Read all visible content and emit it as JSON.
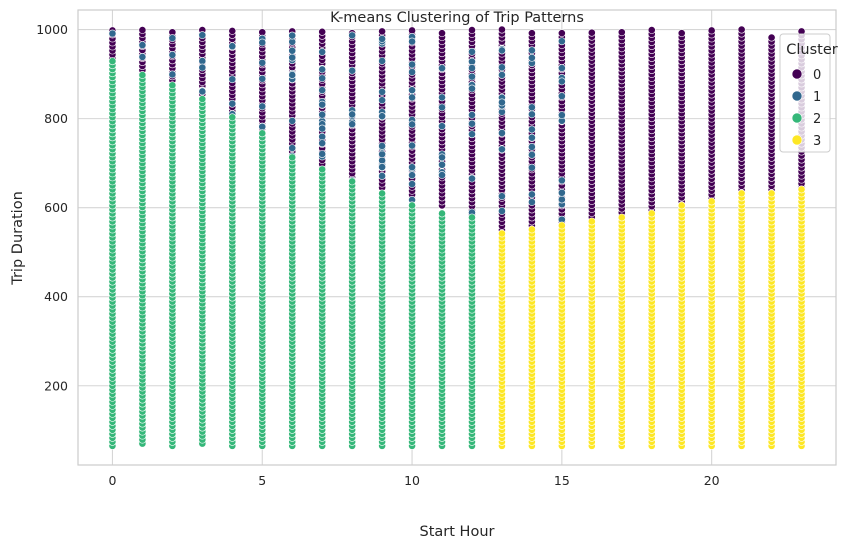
{
  "chart_data": {
    "type": "scatter",
    "title": "K-means Clustering of Trip Patterns",
    "xlabel": "Start Hour",
    "ylabel": "Trip Duration",
    "xlim": [
      -1.15,
      24.15
    ],
    "ylim": [
      22,
      1044
    ],
    "xticks": [
      0,
      5,
      10,
      15,
      20
    ],
    "yticks": [
      200,
      400,
      600,
      800,
      1000
    ],
    "grid": true,
    "legend": {
      "title": "Cluster",
      "position": "top-right",
      "entries": [
        "0",
        "1",
        "2",
        "3"
      ]
    },
    "colors": [
      "#440154",
      "#31688e",
      "#35b779",
      "#fde725"
    ],
    "x_values": [
      0,
      1,
      2,
      3,
      4,
      5,
      6,
      7,
      8,
      9,
      10,
      11,
      12,
      13,
      14,
      15,
      16,
      17,
      18,
      19,
      20,
      21,
      22,
      23
    ],
    "duration_range": [
      65,
      1000
    ],
    "series": [
      {
        "name": "0",
        "color": "#440154",
        "bands": [
          [
            0,
            935,
            1000
          ],
          [
            1,
            900,
            1000
          ],
          [
            2,
            850,
            1000
          ],
          [
            3,
            855,
            1000
          ],
          [
            4,
            790,
            1000
          ],
          [
            5,
            760,
            1000
          ],
          [
            6,
            690,
            1000
          ],
          [
            7,
            680,
            1000
          ],
          [
            8,
            650,
            1000
          ],
          [
            9,
            645,
            1000
          ],
          [
            10,
            620,
            1000
          ],
          [
            11,
            605,
            1000
          ],
          [
            12,
            585,
            1000
          ],
          [
            13,
            550,
            1000
          ],
          [
            14,
            560,
            1000
          ],
          [
            15,
            560,
            1000
          ],
          [
            16,
            570,
            1000
          ],
          [
            17,
            580,
            1000
          ],
          [
            18,
            585,
            1000
          ],
          [
            19,
            605,
            1000
          ],
          [
            20,
            620,
            1000
          ],
          [
            21,
            640,
            1000
          ],
          [
            22,
            640,
            990
          ],
          [
            23,
            645,
            1000
          ]
        ]
      },
      {
        "name": "1",
        "color": "#31688e",
        "bands": [
          [
            0,
            70,
            995
          ],
          [
            1,
            70,
            990
          ],
          [
            2,
            70,
            985
          ],
          [
            3,
            70,
            990
          ],
          [
            4,
            90,
            990
          ],
          [
            5,
            70,
            995
          ],
          [
            6,
            70,
            995
          ],
          [
            7,
            70,
            995
          ],
          [
            8,
            70,
            995
          ],
          [
            9,
            75,
            995
          ],
          [
            10,
            80,
            990
          ],
          [
            11,
            75,
            990
          ],
          [
            12,
            80,
            985
          ],
          [
            13,
            90,
            990
          ],
          [
            14,
            90,
            990
          ],
          [
            15,
            90,
            995
          ],
          [
            16,
            70,
            560
          ],
          [
            17,
            75,
            560
          ],
          [
            18,
            90,
            600
          ],
          [
            19,
            85,
            610
          ],
          [
            20,
            75,
            630
          ],
          [
            21,
            90,
            640
          ],
          [
            22,
            300,
            520
          ],
          [
            23,
            120,
            640
          ]
        ]
      },
      {
        "name": "2",
        "color": "#35b779",
        "bands": [
          [
            0,
            65,
            930
          ],
          [
            1,
            70,
            905
          ],
          [
            2,
            65,
            880
          ],
          [
            3,
            70,
            850
          ],
          [
            4,
            65,
            810
          ],
          [
            5,
            65,
            770
          ],
          [
            6,
            65,
            720
          ],
          [
            7,
            65,
            690
          ],
          [
            8,
            65,
            660
          ],
          [
            9,
            65,
            640
          ],
          [
            10,
            65,
            610
          ],
          [
            11,
            65,
            590
          ],
          [
            12,
            65,
            580
          ]
        ]
      },
      {
        "name": "3",
        "color": "#fde725",
        "bands": [
          [
            13,
            65,
            550
          ],
          [
            14,
            65,
            555
          ],
          [
            15,
            65,
            560
          ],
          [
            16,
            65,
            575
          ],
          [
            17,
            65,
            580
          ],
          [
            18,
            65,
            590
          ],
          [
            19,
            65,
            610
          ],
          [
            20,
            65,
            620
          ],
          [
            21,
            65,
            640
          ],
          [
            22,
            65,
            640
          ],
          [
            23,
            65,
            645
          ]
        ]
      }
    ]
  }
}
